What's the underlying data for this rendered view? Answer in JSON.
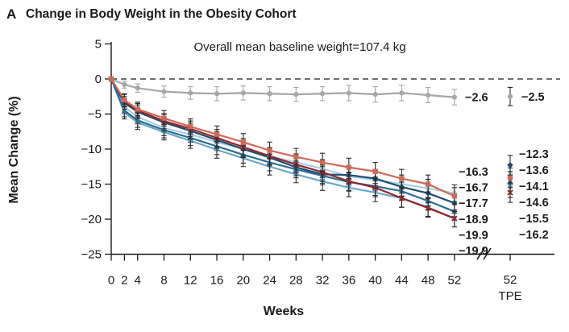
{
  "panel": {
    "letter": "A",
    "title": "Change in Body Weight in the Obesity Cohort"
  },
  "annotation": "Overall mean baseline weight=107.4 kg",
  "chart_data": {
    "type": "line",
    "title": "Change in Body Weight in the Obesity Cohort",
    "xlabel": "Weeks",
    "ylabel": "Mean Change (%)",
    "ylim": [
      -25,
      5
    ],
    "yticks": [
      5,
      0,
      -5,
      -10,
      -15,
      -20,
      -25
    ],
    "xticks": [
      0,
      2,
      4,
      8,
      12,
      16,
      20,
      24,
      28,
      32,
      36,
      40,
      44,
      48,
      52
    ],
    "x_break_tick": {
      "label": "52",
      "sublabel": "TPE"
    },
    "zero_reference_line": true,
    "grid": false,
    "legend": "none",
    "weeks": [
      0,
      2,
      4,
      8,
      12,
      16,
      20,
      24,
      28,
      32,
      36,
      40,
      44,
      48,
      52
    ],
    "series": [
      {
        "name": "series-gray",
        "color": "#a7a7a7",
        "err_color": "#a7a7a7",
        "marker": "circle",
        "values": [
          0,
          -0.8,
          -1.3,
          -1.8,
          -2.0,
          -2.1,
          -2.0,
          -2.1,
          -2.2,
          -2.1,
          -2.0,
          -2.2,
          -2.0,
          -2.3,
          -2.6
        ],
        "err": [
          0,
          0.5,
          0.6,
          0.8,
          0.9,
          1.0,
          1.0,
          1.0,
          1.0,
          1.0,
          1.1,
          1.1,
          1.1,
          1.1,
          1.1
        ],
        "week52_value": -2.6,
        "week52_label": "−2.6",
        "tpe_value": -2.5,
        "tpe_err": 1.3,
        "tpe_label": "−2.5"
      },
      {
        "name": "series-light-blue",
        "color": "#a9cfe3",
        "err_color": "#2b2b2b",
        "marker": "circle",
        "values": [
          0,
          -4.0,
          -5.4,
          -7.0,
          -7.9,
          -9.0,
          -10.0,
          -11.0,
          -11.9,
          -12.8,
          -13.9,
          -14.4,
          -15.0,
          -15.6,
          -16.3
        ],
        "err": [
          0,
          0.9,
          1.0,
          1.1,
          1.1,
          1.2,
          1.2,
          1.2,
          1.2,
          1.3,
          1.3,
          1.3,
          1.3,
          1.3,
          1.2
        ],
        "week52_value": -16.3,
        "week52_label": "−16.3",
        "tpe_value": -13.6,
        "tpe_err": 1.4,
        "tpe_label": "−13.6"
      },
      {
        "name": "series-steel-blue",
        "color": "#6ea7c4",
        "err_color": "#2b2b2b",
        "marker": "triangle-down",
        "values": [
          0,
          -4.8,
          -6.2,
          -7.6,
          -8.8,
          -10.1,
          -11.3,
          -12.5,
          -13.6,
          -14.6,
          -15.5,
          -16.2,
          -17.0,
          -18.3,
          -19.9
        ],
        "err": [
          0,
          0.9,
          1.0,
          1.1,
          1.1,
          1.2,
          1.2,
          1.2,
          1.2,
          1.3,
          1.3,
          1.3,
          1.3,
          1.3,
          1.2
        ],
        "week52_value": -19.9,
        "week52_label": "−19.9",
        "tpe_value": -15.5,
        "tpe_err": 1.4,
        "tpe_label": "−15.5"
      },
      {
        "name": "series-medium-blue",
        "color": "#2d6f95",
        "err_color": "#2b2b2b",
        "marker": "triangle-up",
        "values": [
          0,
          -4.5,
          -5.9,
          -7.3,
          -8.4,
          -9.6,
          -10.8,
          -11.9,
          -12.9,
          -13.8,
          -14.7,
          -15.3,
          -16.0,
          -17.4,
          -18.9
        ],
        "err": [
          0,
          0.9,
          1.0,
          1.1,
          1.1,
          1.2,
          1.2,
          1.2,
          1.2,
          1.3,
          1.3,
          1.3,
          1.3,
          1.3,
          1.2
        ],
        "week52_value": -18.9,
        "week52_label": "−18.9",
        "tpe_value": -14.6,
        "tpe_err": 1.4,
        "tpe_label": "−14.6"
      },
      {
        "name": "series-navy",
        "color": "#1d4d71",
        "err_color": "#2b2b2b",
        "marker": "diamond",
        "values": [
          0,
          -3.4,
          -4.7,
          -6.2,
          -7.4,
          -8.7,
          -10.0,
          -11.2,
          -12.6,
          -13.6,
          -13.7,
          -14.2,
          -15.4,
          -16.3,
          -17.7
        ],
        "err": [
          0,
          0.9,
          1.0,
          1.1,
          1.1,
          1.2,
          1.2,
          1.2,
          1.2,
          1.3,
          1.3,
          1.3,
          1.3,
          1.3,
          1.2
        ],
        "week52_value": -17.7,
        "week52_label": "−17.7",
        "tpe_value": -12.3,
        "tpe_err": 1.4,
        "tpe_label": "−12.3"
      },
      {
        "name": "series-maroon",
        "color": "#92272e",
        "err_color": "#2b2b2b",
        "marker": "x",
        "values": [
          0,
          -3.1,
          -4.5,
          -6.0,
          -7.1,
          -8.4,
          -9.7,
          -11.0,
          -12.2,
          -13.3,
          -14.6,
          -15.5,
          -17.0,
          -18.4,
          -19.9
        ],
        "err": [
          0,
          0.9,
          1.0,
          1.1,
          1.1,
          1.2,
          1.2,
          1.2,
          1.2,
          1.3,
          1.3,
          1.3,
          1.3,
          1.3,
          1.2
        ],
        "week52_value": -19.9,
        "week52_label": "−19.9",
        "tpe_value": -16.2,
        "tpe_err": 1.4,
        "tpe_label": "−16.2"
      },
      {
        "name": "series-salmon",
        "color": "#cf6a58",
        "err_color": "#2b2b2b",
        "marker": "square",
        "values": [
          0,
          -3.0,
          -4.3,
          -5.6,
          -6.8,
          -7.9,
          -9.0,
          -10.2,
          -11.1,
          -11.9,
          -12.6,
          -13.2,
          -14.2,
          -15.0,
          -16.7
        ],
        "err": [
          0,
          0.9,
          1.0,
          1.1,
          1.1,
          1.2,
          1.2,
          1.2,
          1.2,
          1.3,
          1.3,
          1.3,
          1.3,
          1.3,
          1.2
        ],
        "week52_value": -16.7,
        "week52_label": "−16.7",
        "tpe_value": -14.1,
        "tpe_err": 1.4,
        "tpe_label": "−14.1"
      }
    ],
    "week52_label_stack": [
      {
        "series": "series-light-blue",
        "text": "−16.3"
      },
      {
        "series": "series-salmon",
        "text": "−16.7"
      },
      {
        "series": "series-navy",
        "text": "−17.7"
      },
      {
        "series": "series-medium-blue",
        "text": "−18.9"
      },
      {
        "series": "series-steel-blue",
        "text": "−19.9"
      },
      {
        "series": "series-maroon",
        "text": "−19.9"
      }
    ],
    "tpe_label_stack": [
      {
        "series": "series-navy",
        "text": "−12.3"
      },
      {
        "series": "series-light-blue",
        "text": "−13.6"
      },
      {
        "series": "series-salmon",
        "text": "−14.1"
      },
      {
        "series": "series-medium-blue",
        "text": "−14.6"
      },
      {
        "series": "series-steel-blue",
        "text": "−15.5"
      },
      {
        "series": "series-maroon",
        "text": "−16.2"
      }
    ],
    "axis_color": "#1a1a1a"
  }
}
